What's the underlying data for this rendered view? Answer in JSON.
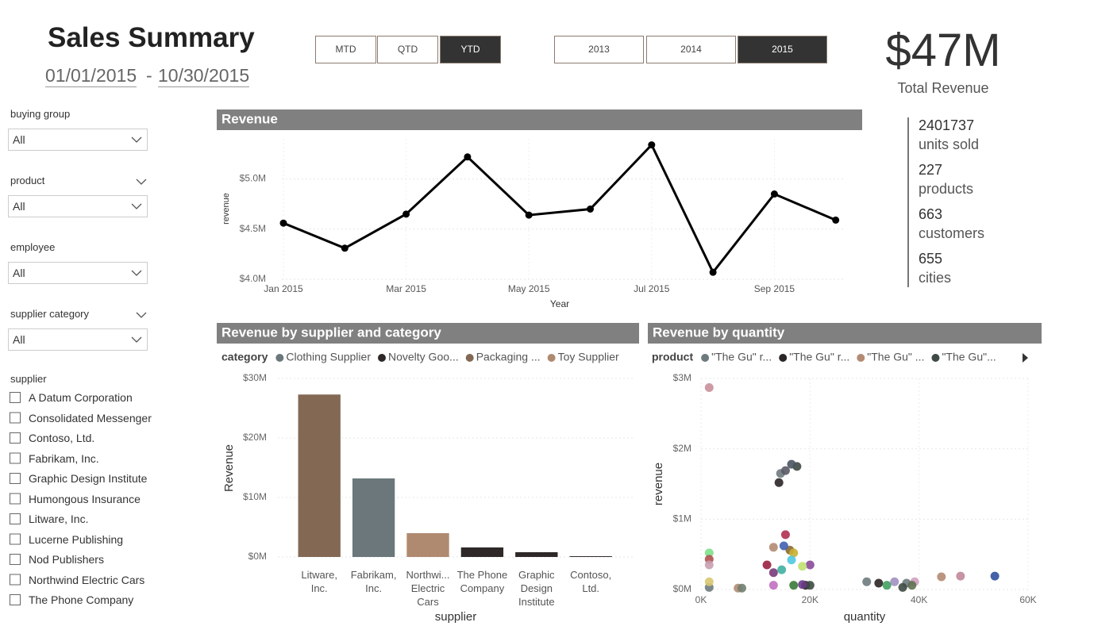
{
  "header": {
    "title": "Sales Summary",
    "date_start": "01/01/2015",
    "date_sep": "-",
    "date_end": "10/30/2015"
  },
  "period_buttons": {
    "items": [
      "MTD",
      "QTD",
      "YTD"
    ],
    "selected_index": 2
  },
  "year_buttons": {
    "items": [
      "2013",
      "2014",
      "2015"
    ],
    "selected_index": 2
  },
  "kpi": {
    "value": "$47M",
    "label": "Total Revenue"
  },
  "stats": [
    {
      "value": 2401737,
      "label": "units sold"
    },
    {
      "value": 227,
      "label": "products"
    },
    {
      "value": 663,
      "label": "customers"
    },
    {
      "value": 655,
      "label": "cities"
    }
  ],
  "slicers": [
    {
      "label": "buying group",
      "value": "All",
      "expand_icon": false
    },
    {
      "label": "product",
      "value": "All",
      "expand_icon": true
    },
    {
      "label": "employee",
      "value": "All",
      "expand_icon": false
    },
    {
      "label": "supplier category",
      "value": "All",
      "expand_icon": true
    }
  ],
  "supplier_list": {
    "label": "supplier",
    "items": [
      "A Datum Corporation",
      "Consolidated Messenger",
      "Contoso, Ltd.",
      "Fabrikam, Inc.",
      "Graphic Design Institute",
      "Humongous Insurance",
      "Litware, Inc.",
      "Lucerne Publishing",
      "Nod Publishers",
      "Northwind Electric Cars",
      "The Phone Company"
    ]
  },
  "chart_data": [
    {
      "type": "line",
      "title": "Revenue",
      "x_label": "Year",
      "y_label": "revenue",
      "categories": [
        "Jan 2015",
        null,
        "Mar 2015",
        null,
        "May 2015",
        null,
        "Jul 2015",
        null,
        "Sep 2015",
        null
      ],
      "values": [
        4560000,
        4310000,
        4650000,
        5220000,
        4640000,
        4700000,
        5340000,
        4070000,
        4850000,
        4590000
      ],
      "color": "#000000",
      "ylim": [
        4000000,
        5400000
      ],
      "yticks": [
        {
          "value": 4000000,
          "label": "$4.0M"
        },
        {
          "value": 4500000,
          "label": "$4.5M"
        },
        {
          "value": 5000000,
          "label": "$5.0M"
        }
      ],
      "grid": true
    },
    {
      "type": "bar",
      "title": "Revenue by supplier and category",
      "x_label": "supplier",
      "y_label": "Revenue",
      "legend_title": "category",
      "categories": [
        "Litware, Inc.",
        "Fabrikam, Inc.",
        "Northwi... Electric Cars",
        "The Phone Company",
        "Graphic Design Institute",
        "Contoso, Ltd."
      ],
      "series": [
        {
          "name": "Clothing Supplier",
          "color": "#6b777b",
          "values": [
            null,
            13200000,
            null,
            null,
            null,
            null
          ]
        },
        {
          "name": "Novelty Goo...",
          "color": "#2e2828",
          "values": [
            null,
            null,
            null,
            1600000,
            800000,
            130000
          ]
        },
        {
          "name": "Packaging ...",
          "color": "#836954",
          "values": [
            27300000,
            null,
            null,
            null,
            null,
            null
          ]
        },
        {
          "name": "Toy Supplier",
          "color": "#b08a70",
          "values": [
            null,
            null,
            4000000,
            null,
            null,
            null
          ]
        }
      ],
      "ylim": [
        0,
        30000000
      ],
      "yticks": [
        {
          "value": 0,
          "label": "$0M"
        },
        {
          "value": 10000000,
          "label": "$10M"
        },
        {
          "value": 20000000,
          "label": "$20M"
        },
        {
          "value": 30000000,
          "label": "$30M"
        }
      ],
      "grid": true
    },
    {
      "type": "scatter",
      "title": "Revenue by quantity",
      "x_label": "quantity",
      "y_label": "revenue",
      "legend_title": "product",
      "series": [
        {
          "name": "\"The Gu\" r...",
          "color": "#6d7a7e",
          "x": [
            1500,
            30400,
            14600,
            37700
          ],
          "values": [
            30000,
            110000,
            1650000,
            90000
          ]
        },
        {
          "name": "\"The Gu\" r...",
          "color": "#2b2526",
          "x": [
            14300,
            32600,
            19200
          ],
          "values": [
            1520000,
            90000,
            60000
          ]
        },
        {
          "name": "\"The Gu\" ...",
          "color": "#b38b73",
          "x": [
            13300,
            44100,
            6800
          ],
          "values": [
            600000,
            180000,
            20000
          ]
        },
        {
          "name": "\"The Gu\"...",
          "color": "#3f4a44",
          "x": [
            17600,
            37000,
            20000
          ],
          "values": [
            1750000,
            30000,
            60000
          ]
        },
        {
          "colors": [
            "#c9909a",
            "#7ee08a",
            "#b05050",
            "#c8a0b0",
            "#5a5a66",
            "#4a5560",
            "#b03050",
            "#8a6a30",
            "#c9b030",
            "#8a4a9a",
            "#c0e070",
            "#40b0a0",
            "#7a3a7a",
            "#9a2040",
            "#50c8e0",
            "#4060b0",
            "#c070c0",
            "#3a7a3a",
            "#6a3a8a",
            "#a090c0",
            "#d0a0c0",
            "#40a060",
            "#607050",
            "#c08898",
            "#3050a0",
            "#d8c870",
            "#708070"
          ],
          "x": [
            1500,
            1500,
            1500,
            1500,
            15500,
            16600,
            15500,
            16300,
            17000,
            20000,
            18600,
            14800,
            13300,
            12100,
            16600,
            15200,
            13300,
            17000,
            18600,
            35500,
            39200,
            34100,
            38700,
            47600,
            53900,
            1500,
            7500
          ],
          "values": [
            2870000,
            520000,
            430000,
            350000,
            1690000,
            1780000,
            780000,
            560000,
            520000,
            350000,
            330000,
            280000,
            240000,
            350000,
            420000,
            620000,
            60000,
            60000,
            70000,
            110000,
            110000,
            60000,
            60000,
            190000,
            190000,
            110000,
            20000
          ]
        }
      ],
      "xlim": [
        0,
        60000
      ],
      "xticks": [
        {
          "value": 0,
          "label": "0K"
        },
        {
          "value": 20000,
          "label": "20K"
        },
        {
          "value": 40000,
          "label": "40K"
        },
        {
          "value": 60000,
          "label": "60K"
        }
      ],
      "ylim": [
        0,
        3000000
      ],
      "yticks": [
        {
          "value": 0,
          "label": "$0M"
        },
        {
          "value": 1000000,
          "label": "$1M"
        },
        {
          "value": 2000000,
          "label": "$2M"
        },
        {
          "value": 3000000,
          "label": "$3M"
        }
      ],
      "grid": true
    }
  ]
}
